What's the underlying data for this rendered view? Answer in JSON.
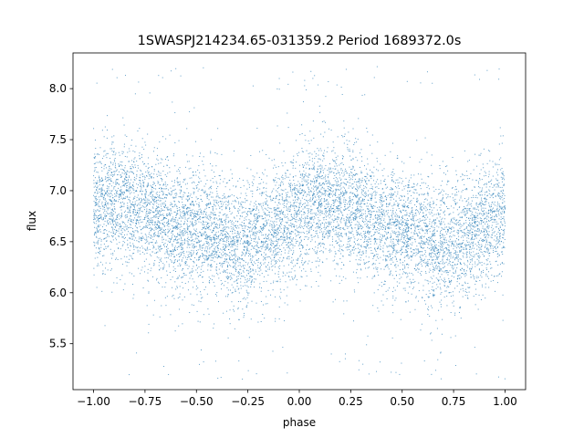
{
  "chart_data": {
    "type": "scatter",
    "title": "1SWASPJ214234.65-031359.2 Period 1689372.0s",
    "xlabel": "phase",
    "ylabel": "flux",
    "xlim": [
      -1.1,
      1.1
    ],
    "ylim": [
      5.05,
      8.35
    ],
    "xticks": [
      -1.0,
      -0.75,
      -0.5,
      -0.25,
      0.0,
      0.25,
      0.5,
      0.75,
      1.0
    ],
    "xtick_labels": [
      "−1.00",
      "−0.75",
      "−0.50",
      "−0.25",
      "0.00",
      "0.25",
      "0.50",
      "0.75",
      "1.00"
    ],
    "yticks": [
      5.5,
      6.0,
      6.5,
      7.0,
      7.5,
      8.0
    ],
    "ytick_labels": [
      "5.5",
      "6.0",
      "6.5",
      "7.0",
      "7.5",
      "8.0"
    ],
    "grid": false,
    "marker_color": "#1f77b4",
    "series": [
      {
        "phase_range": [
          -1.0,
          1.0
        ],
        "flux_center_profile": {
          "phase": [
            0.0,
            0.05,
            0.1,
            0.15,
            0.2,
            0.25,
            0.3,
            0.35,
            0.4,
            0.45,
            0.5,
            0.55,
            0.6,
            0.65,
            0.7,
            0.75,
            0.8,
            0.85,
            0.9,
            0.95,
            1.0
          ],
          "flux": [
            6.8,
            6.85,
            6.9,
            6.88,
            6.85,
            6.82,
            6.78,
            6.72,
            6.65,
            6.6,
            6.62,
            6.58,
            6.55,
            6.5,
            6.48,
            6.5,
            6.55,
            6.6,
            6.65,
            6.72,
            6.8
          ]
        },
        "flux_spread": 0.3,
        "flux_min": 5.15,
        "flux_max": 8.22
      }
    ]
  }
}
